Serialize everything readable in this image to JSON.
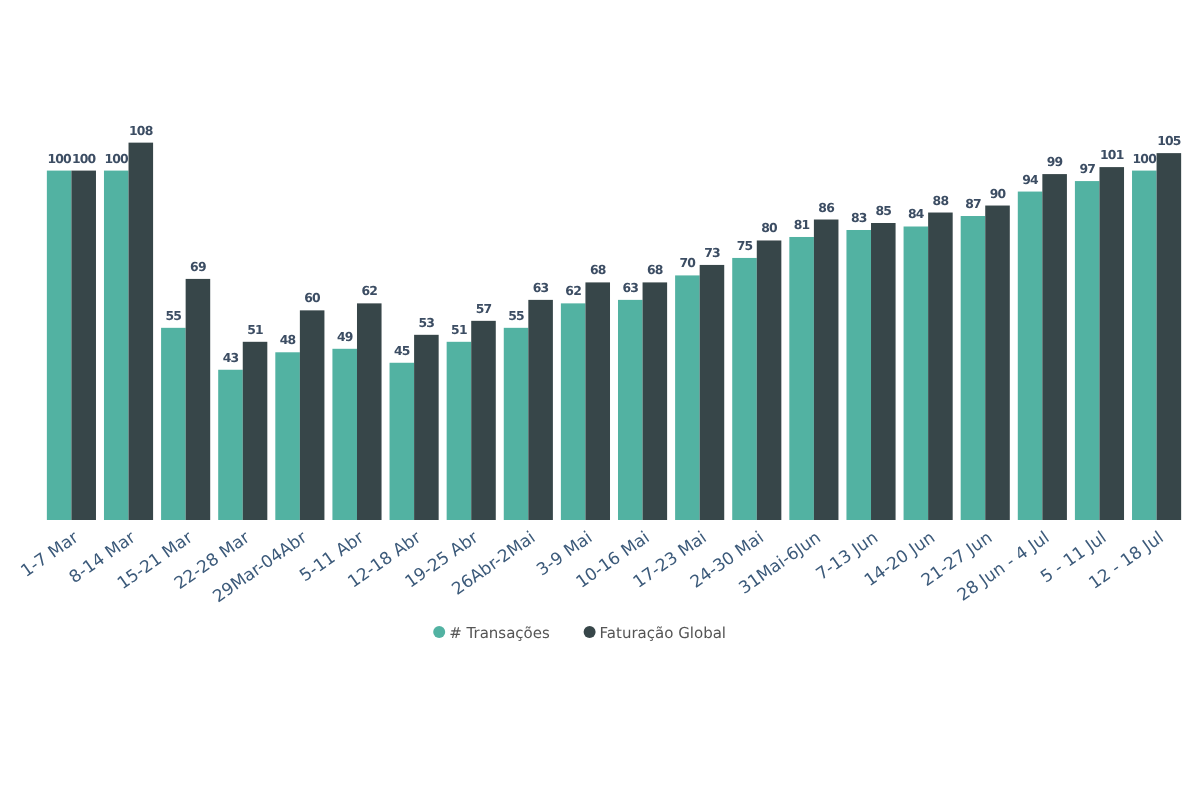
{
  "chart_data": {
    "type": "bar",
    "categories": [
      "1-7 Mar",
      "8-14 Mar",
      "15-21 Mar",
      "22-28 Mar",
      "29Mar-04Abr",
      "5-11 Abr",
      "12-18 Abr",
      "19-25 Abr",
      "26Abr-2Mai",
      "3-9 Mai",
      "10-16 Mai",
      "17-23 Mai",
      "24-30 Mai",
      "31Mai-6Jun",
      "7-13 Jun",
      "14-20 Jun",
      "21-27 Jun",
      "28 Jun - 4 Jul",
      "5 - 11 Jul",
      "12 - 18 Jul"
    ],
    "series": [
      {
        "name": "# Transações",
        "color": "#52b2a2",
        "values": [
          100,
          100,
          55,
          43,
          48,
          49,
          45,
          51,
          55,
          62,
          63,
          70,
          75,
          81,
          83,
          84,
          87,
          94,
          97,
          100
        ]
      },
      {
        "name": "Faturação Global",
        "color": "#374649",
        "values": [
          100,
          108,
          69,
          51,
          60,
          62,
          53,
          57,
          63,
          68,
          68,
          73,
          80,
          86,
          85,
          88,
          90,
          99,
          101,
          105
        ]
      }
    ],
    "tick_labels": "x",
    "data_labels": true,
    "legend": "bottom"
  }
}
